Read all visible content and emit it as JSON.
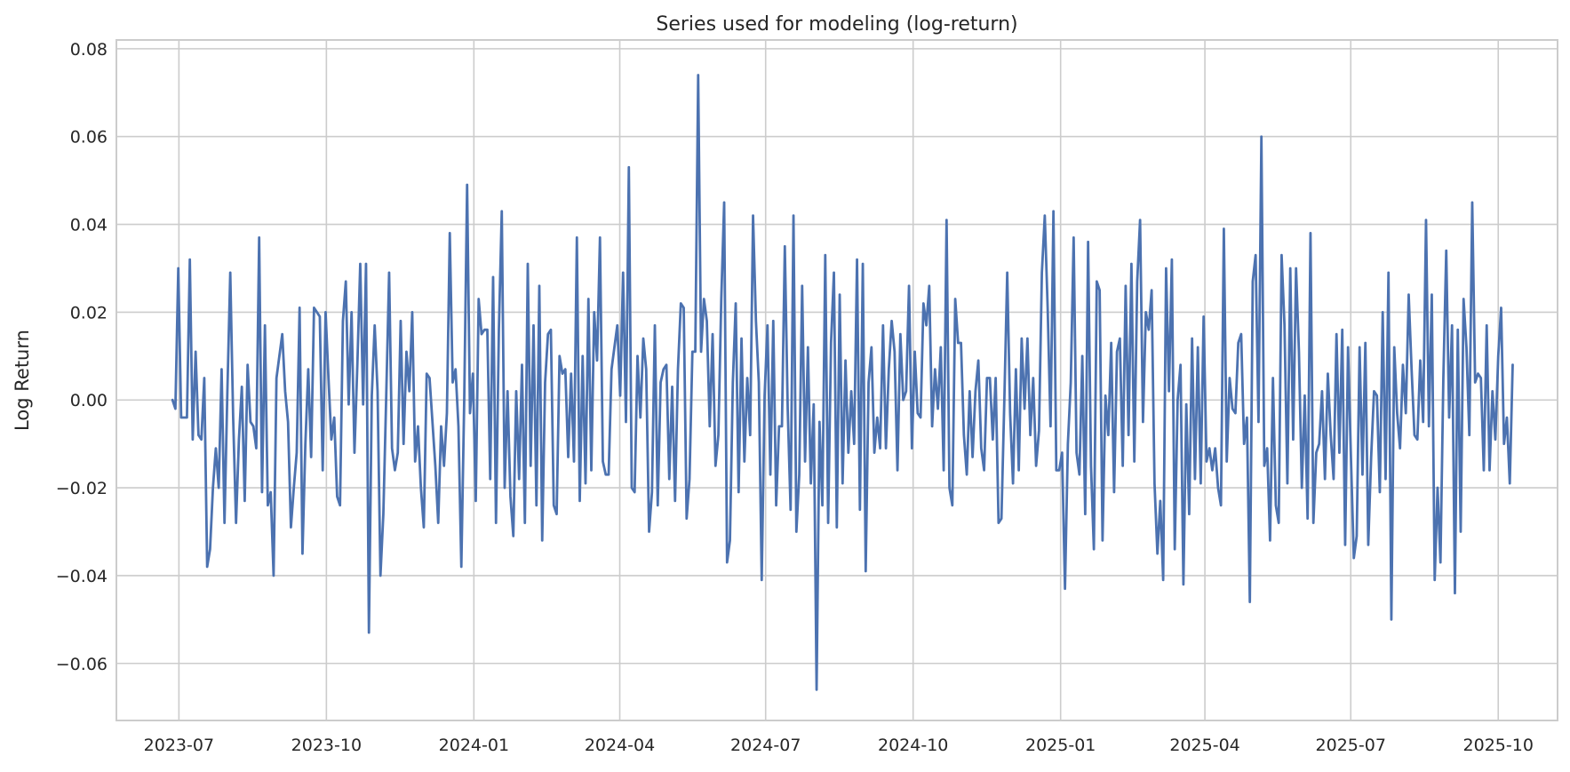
{
  "chart_data": {
    "type": "line",
    "title": "Series used for modeling (log-return)",
    "xlabel": "",
    "ylabel": "Log Return",
    "x_range": [
      "2023-05-23",
      "2025-11-07"
    ],
    "y_range": [
      -0.073,
      0.082
    ],
    "x_ticks": [
      "2023-07",
      "2023-10",
      "2024-01",
      "2024-04",
      "2024-07",
      "2024-10",
      "2025-01",
      "2025-04",
      "2025-07",
      "2025-10"
    ],
    "y_ticks": [
      -0.06,
      -0.04,
      -0.02,
      0.0,
      0.02,
      0.04,
      0.06,
      0.08
    ],
    "y_tick_labels": [
      "−0.06",
      "−0.04",
      "−0.02",
      "0.00",
      "0.02",
      "0.04",
      "0.06",
      "0.08"
    ],
    "grid": true,
    "legend": "none",
    "line_color": "#4c72b0",
    "series": [
      {
        "x_start": "2023-06-27",
        "x_end": "2025-10-10",
        "values": [
          0.0,
          -0.002,
          0.03,
          -0.004,
          -0.004,
          -0.004,
          0.032,
          -0.009,
          0.011,
          -0.008,
          -0.009,
          0.005,
          -0.038,
          -0.034,
          -0.02,
          -0.011,
          -0.02,
          0.007,
          -0.028,
          0.002,
          0.029,
          -0.004,
          -0.028,
          -0.009,
          0.003,
          -0.023,
          0.008,
          -0.005,
          -0.006,
          -0.011,
          0.037,
          -0.021,
          0.017,
          -0.024,
          -0.021,
          -0.04,
          0.005,
          0.01,
          0.015,
          0.002,
          -0.005,
          -0.029,
          -0.02,
          -0.012,
          0.021,
          -0.035,
          -0.01,
          0.007,
          -0.013,
          0.021,
          0.02,
          0.019,
          -0.016,
          0.02,
          0.005,
          -0.009,
          -0.004,
          -0.022,
          -0.024,
          0.018,
          0.027,
          -0.001,
          0.02,
          -0.012,
          0.008,
          0.031,
          -0.001,
          0.031,
          -0.053,
          0.001,
          0.017,
          0.002,
          -0.04,
          -0.026,
          0.001,
          0.029,
          -0.011,
          -0.016,
          -0.012,
          0.018,
          -0.01,
          0.011,
          0.002,
          0.02,
          -0.014,
          -0.006,
          -0.02,
          -0.029,
          0.006,
          0.005,
          -0.005,
          -0.015,
          -0.028,
          -0.006,
          -0.015,
          -0.003,
          0.038,
          0.004,
          0.007,
          -0.006,
          -0.038,
          0.0,
          0.049,
          -0.003,
          0.006,
          -0.023,
          0.023,
          0.015,
          0.016,
          0.016,
          -0.018,
          0.028,
          -0.028,
          0.016,
          0.043,
          -0.02,
          0.002,
          -0.022,
          -0.031,
          0.002,
          -0.018,
          0.008,
          -0.028,
          0.031,
          -0.015,
          0.017,
          -0.024,
          0.026,
          -0.032,
          0.004,
          0.015,
          0.016,
          -0.024,
          -0.026,
          0.01,
          0.006,
          0.007,
          -0.013,
          0.006,
          -0.014,
          0.037,
          -0.023,
          0.01,
          -0.019,
          0.023,
          -0.016,
          0.02,
          0.009,
          0.037,
          -0.014,
          -0.017,
          -0.017,
          0.007,
          0.012,
          0.017,
          0.001,
          0.029,
          -0.005,
          0.053,
          -0.02,
          -0.021,
          0.01,
          -0.004,
          0.014,
          0.007,
          -0.03,
          -0.021,
          0.017,
          -0.024,
          0.004,
          0.007,
          0.008,
          -0.018,
          0.003,
          -0.023,
          0.007,
          0.022,
          0.021,
          -0.027,
          -0.018,
          0.011,
          0.011,
          0.074,
          0.011,
          0.023,
          0.018,
          -0.006,
          0.015,
          -0.015,
          -0.008,
          0.023,
          0.045,
          -0.037,
          -0.032,
          0.004,
          0.022,
          -0.021,
          0.014,
          -0.014,
          0.005,
          -0.008,
          0.042,
          0.018,
          0.004,
          -0.041,
          0.001,
          0.017,
          -0.017,
          0.018,
          -0.024,
          -0.006,
          -0.006,
          0.035,
          -0.002,
          -0.025,
          0.042,
          -0.03,
          -0.017,
          0.026,
          -0.014,
          0.012,
          -0.019,
          -0.001,
          -0.066,
          -0.005,
          -0.024,
          0.033,
          -0.028,
          0.013,
          0.029,
          -0.029,
          0.024,
          -0.019,
          0.009,
          -0.012,
          0.002,
          -0.01,
          0.032,
          -0.025,
          0.031,
          -0.039,
          0.004,
          0.012,
          -0.012,
          -0.004,
          -0.011,
          0.017,
          -0.011,
          0.007,
          0.018,
          0.011,
          -0.016,
          0.015,
          0.0,
          0.002,
          0.026,
          -0.011,
          0.011,
          -0.003,
          -0.004,
          0.022,
          0.017,
          0.026,
          -0.006,
          0.007,
          -0.002,
          0.012,
          -0.016,
          0.041,
          -0.02,
          -0.024,
          0.023,
          0.013,
          0.013,
          -0.008,
          -0.017,
          0.002,
          -0.013,
          0.002,
          0.009,
          -0.011,
          -0.016,
          0.005,
          0.005,
          -0.009,
          0.005,
          -0.028,
          -0.027,
          0.0,
          0.029,
          -0.003,
          -0.019,
          0.007,
          -0.016,
          0.014,
          -0.002,
          0.014,
          -0.008,
          0.005,
          -0.015,
          -0.007,
          0.029,
          0.042,
          0.021,
          -0.006,
          0.043,
          -0.016,
          -0.016,
          -0.012,
          -0.043,
          -0.01,
          0.004,
          0.037,
          -0.012,
          -0.017,
          0.01,
          -0.026,
          0.036,
          -0.015,
          -0.034,
          0.027,
          0.025,
          -0.032,
          0.001,
          -0.008,
          0.013,
          -0.021,
          0.011,
          0.014,
          -0.015,
          0.026,
          -0.008,
          0.031,
          -0.014,
          0.027,
          0.041,
          -0.005,
          0.02,
          0.016,
          0.025,
          -0.019,
          -0.035,
          -0.023,
          -0.041,
          0.03,
          0.002,
          0.032,
          -0.034,
          0.0,
          0.008,
          -0.042,
          -0.001,
          -0.026,
          0.014,
          -0.018,
          0.012,
          -0.019,
          0.019,
          -0.014,
          -0.011,
          -0.016,
          -0.011,
          -0.02,
          -0.024,
          0.039,
          -0.014,
          0.005,
          -0.002,
          -0.003,
          0.013,
          0.015,
          -0.01,
          -0.004,
          -0.046,
          0.027,
          0.033,
          -0.005,
          0.06,
          -0.015,
          -0.011,
          -0.032,
          0.005,
          -0.024,
          -0.028,
          0.033,
          0.017,
          -0.019,
          0.03,
          -0.009,
          0.03,
          0.011,
          -0.02,
          0.001,
          -0.027,
          0.038,
          -0.028,
          -0.012,
          -0.01,
          0.002,
          -0.018,
          0.006,
          -0.008,
          -0.018,
          0.015,
          -0.012,
          0.016,
          -0.033,
          0.012,
          -0.013,
          -0.036,
          -0.031,
          0.012,
          -0.017,
          0.013,
          -0.033,
          -0.013,
          0.002,
          0.001,
          -0.021,
          0.02,
          -0.018,
          0.029,
          -0.05,
          0.012,
          -0.003,
          -0.011,
          0.008,
          -0.003,
          0.024,
          0.007,
          -0.008,
          -0.009,
          0.009,
          -0.005,
          0.041,
          -0.006,
          0.024,
          -0.041,
          -0.02,
          -0.037,
          0.005,
          0.034,
          -0.004,
          0.017,
          -0.044,
          0.016,
          -0.03,
          0.023,
          0.012,
          -0.008,
          0.045,
          0.004,
          0.006,
          0.005,
          -0.016,
          0.017,
          -0.016,
          0.002,
          -0.009,
          0.01,
          0.021,
          -0.01,
          -0.004,
          -0.019,
          0.008
        ]
      }
    ]
  }
}
